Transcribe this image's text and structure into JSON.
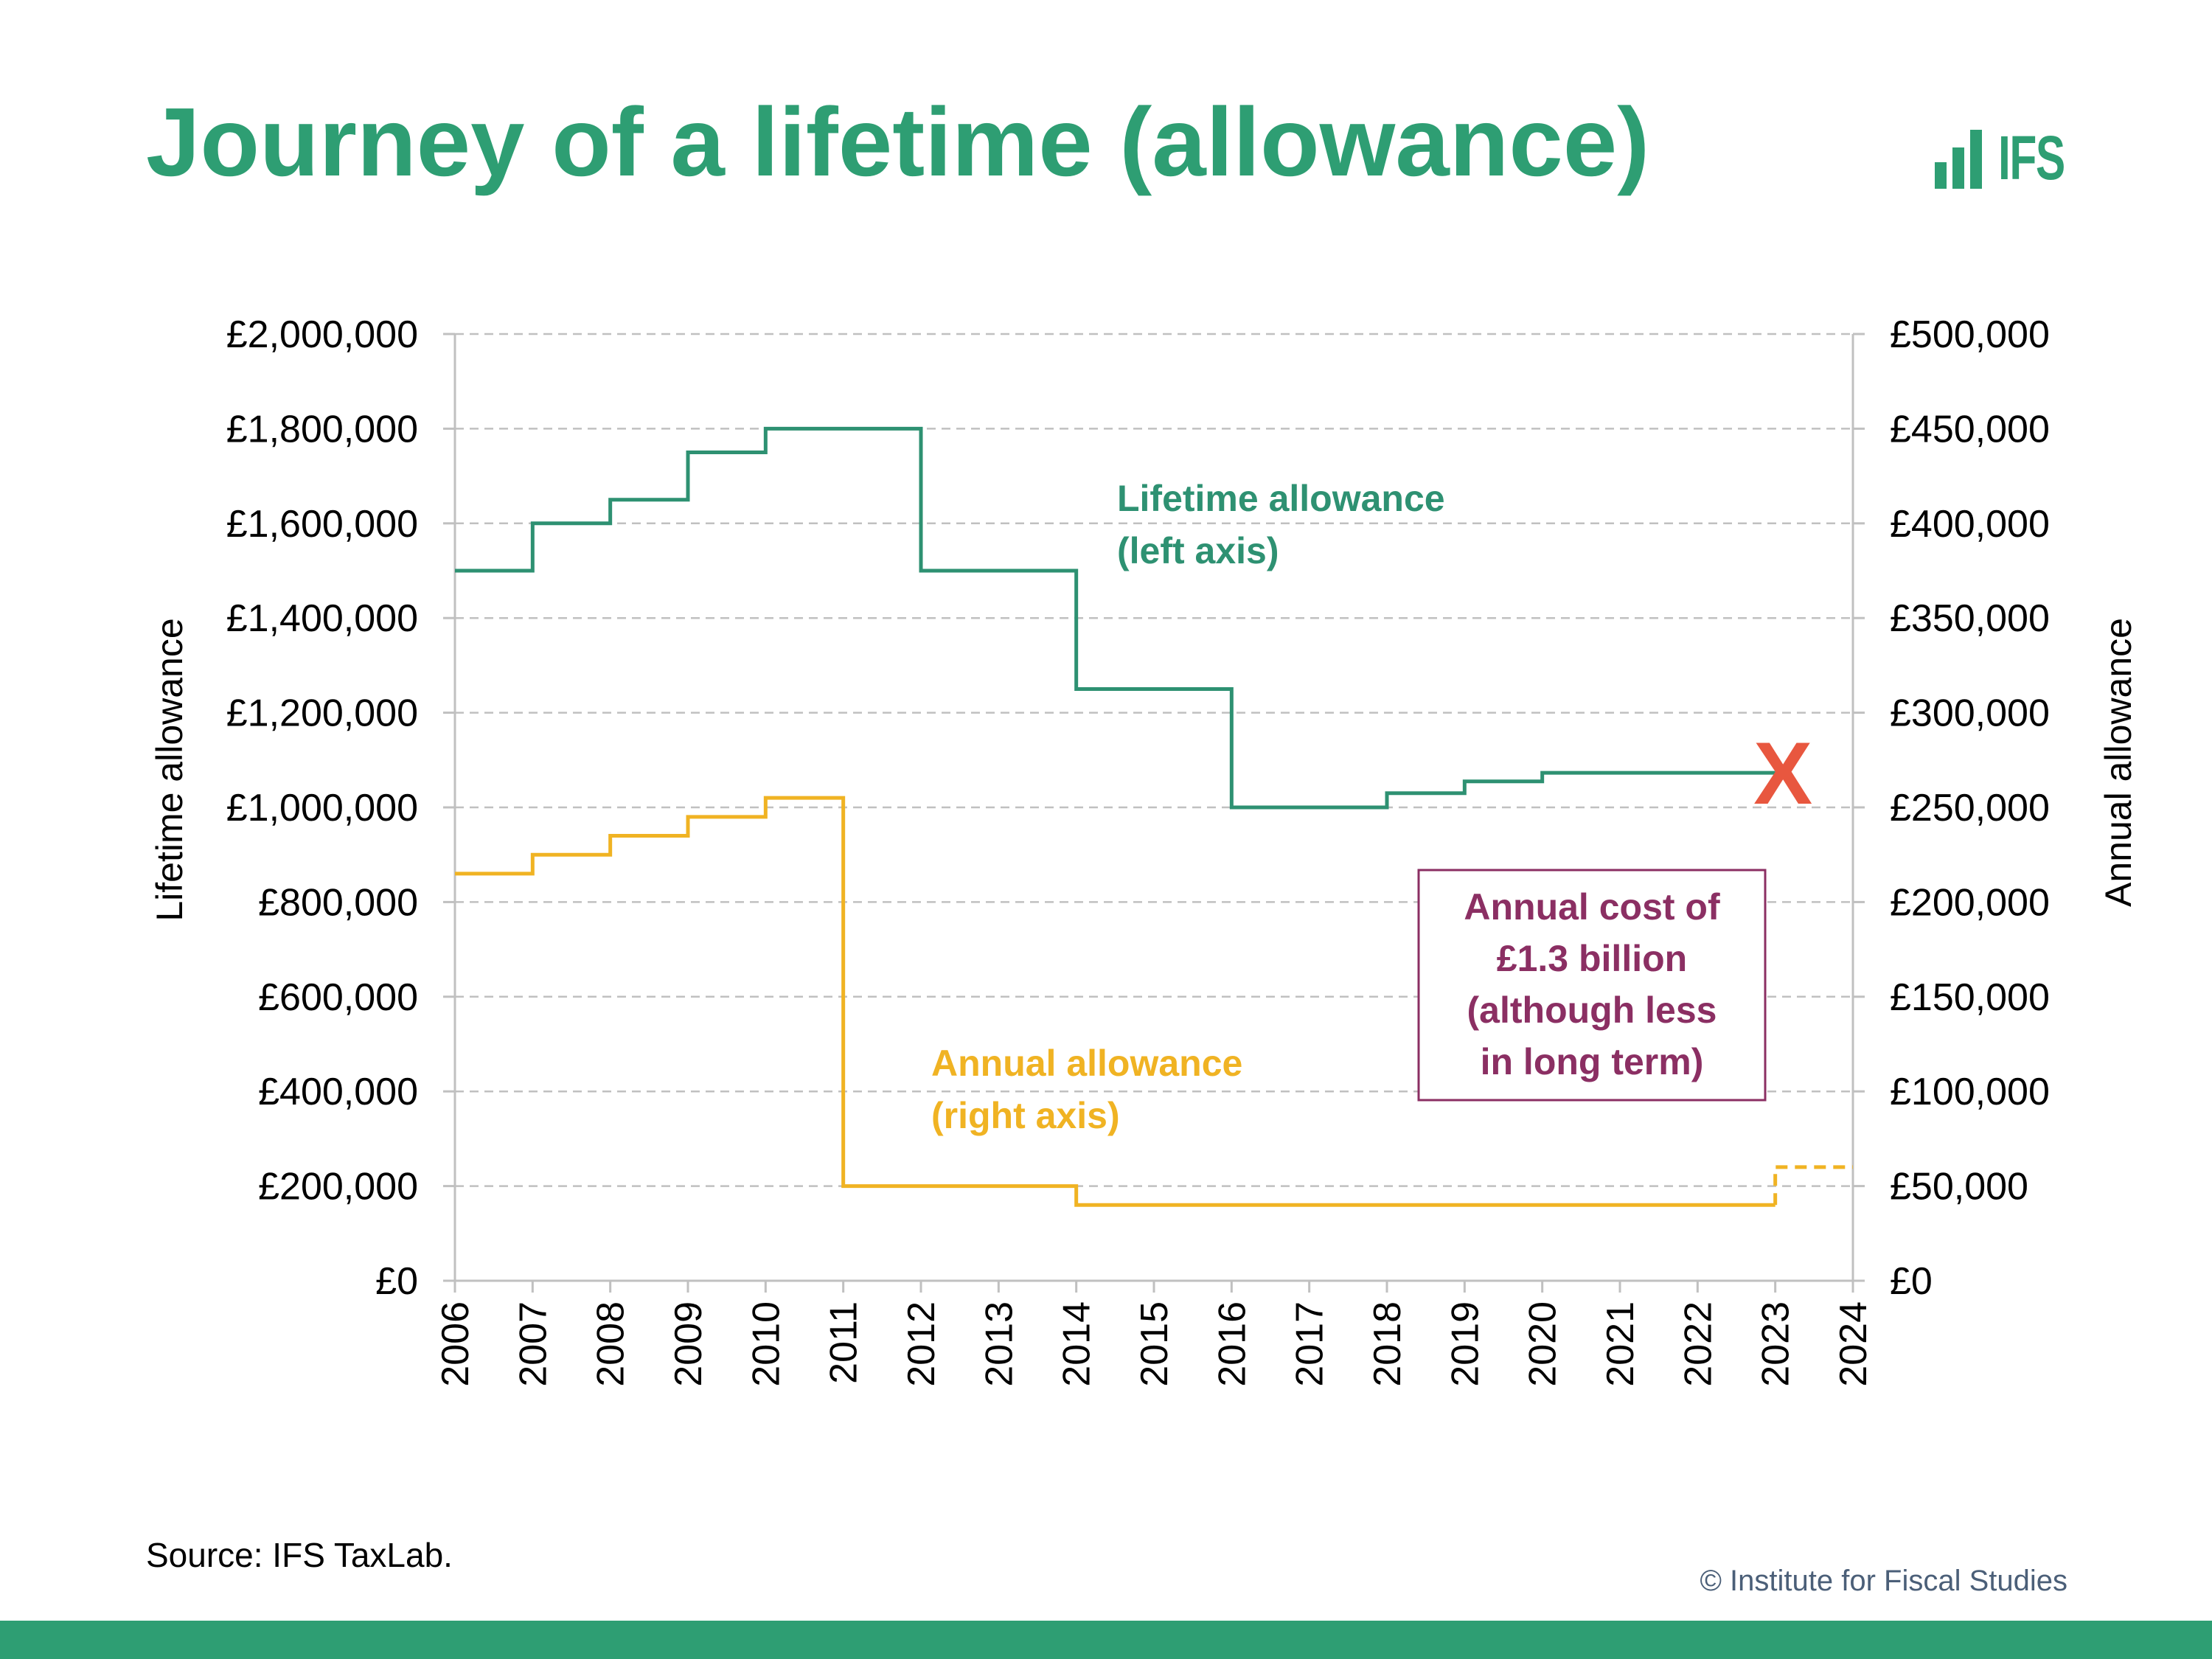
{
  "page": {
    "title": "Journey of a lifetime (allowance)",
    "logo_text": "IFS",
    "source": "Source: IFS TaxLab.",
    "copyright": "© Institute for Fiscal Studies"
  },
  "colors": {
    "brand": "#2e9e73",
    "lifetime": "#2e9172",
    "annual": "#f0b323",
    "cost": "#8b2f63",
    "cross": "#e8573f",
    "grid": "#c0c0c0"
  },
  "chart_data": {
    "type": "line",
    "step": true,
    "x_categories": [
      "2006",
      "2007",
      "2008",
      "2009",
      "2010",
      "2011",
      "2012",
      "2013",
      "2014",
      "2015",
      "2016",
      "2017",
      "2018",
      "2019",
      "2020",
      "2021",
      "2022",
      "2023",
      "2024"
    ],
    "xlim": [
      2006,
      2024
    ],
    "left_axis": {
      "label": "Lifetime allowance",
      "ylim": [
        0,
        2000000
      ],
      "tick_values": [
        0,
        200000,
        400000,
        600000,
        800000,
        1000000,
        1200000,
        1400000,
        1600000,
        1800000,
        2000000
      ],
      "tick_labels": [
        "£0",
        "£200,000",
        "£400,000",
        "£600,000",
        "£800,000",
        "£1,000,000",
        "£1,200,000",
        "£1,400,000",
        "£1,600,000",
        "£1,800,000",
        "£2,000,000"
      ]
    },
    "right_axis": {
      "label": "Annual allowance",
      "ylim": [
        0,
        500000
      ],
      "tick_values": [
        0,
        50000,
        100000,
        150000,
        200000,
        250000,
        300000,
        350000,
        400000,
        450000,
        500000
      ],
      "tick_labels": [
        "£0",
        "£50,000",
        "£100,000",
        "£150,000",
        "£200,000",
        "£250,000",
        "£300,000",
        "£350,000",
        "£400,000",
        "£450,000",
        "£500,000"
      ]
    },
    "grid": "horizontal-dashed",
    "series": [
      {
        "name": "Lifetime allowance (left axis)",
        "axis": "left",
        "style": "solid",
        "steps": [
          {
            "x": 2006,
            "y": 1500000
          },
          {
            "x": 2007,
            "y": 1600000
          },
          {
            "x": 2008,
            "y": 1650000
          },
          {
            "x": 2009,
            "y": 1750000
          },
          {
            "x": 2010,
            "y": 1800000
          },
          {
            "x": 2012,
            "y": 1500000
          },
          {
            "x": 2014,
            "y": 1250000
          },
          {
            "x": 2016,
            "y": 1000000
          },
          {
            "x": 2018,
            "y": 1030000
          },
          {
            "x": 2019,
            "y": 1055000
          },
          {
            "x": 2020,
            "y": 1073100
          }
        ],
        "x_end": 2023
      },
      {
        "name": "Annual allowance (right axis)",
        "axis": "right",
        "style": "solid",
        "steps": [
          {
            "x": 2006,
            "y": 215000
          },
          {
            "x": 2007,
            "y": 225000
          },
          {
            "x": 2008,
            "y": 235000
          },
          {
            "x": 2009,
            "y": 245000
          },
          {
            "x": 2010,
            "y": 255000
          },
          {
            "x": 2011,
            "y": 50000
          },
          {
            "x": 2014,
            "y": 40000
          }
        ],
        "x_end": 2023
      },
      {
        "name": "Annual allowance from 2023",
        "axis": "right",
        "style": "dashed",
        "steps": [
          {
            "x": 2023,
            "y": 40000
          },
          {
            "x": 2023,
            "y": 60000
          }
        ],
        "x_end": 2024
      }
    ],
    "annotations": {
      "lifetime_label": [
        "Lifetime allowance",
        "(left axis)"
      ],
      "annual_label": [
        "Annual allowance",
        "(right axis)"
      ],
      "cost_box": [
        "Annual cost of",
        "£1.3 billion",
        "(although less",
        "in long term)"
      ],
      "abolition_marker": {
        "text": "X",
        "x": 2023.1,
        "y": 1073100
      }
    }
  }
}
